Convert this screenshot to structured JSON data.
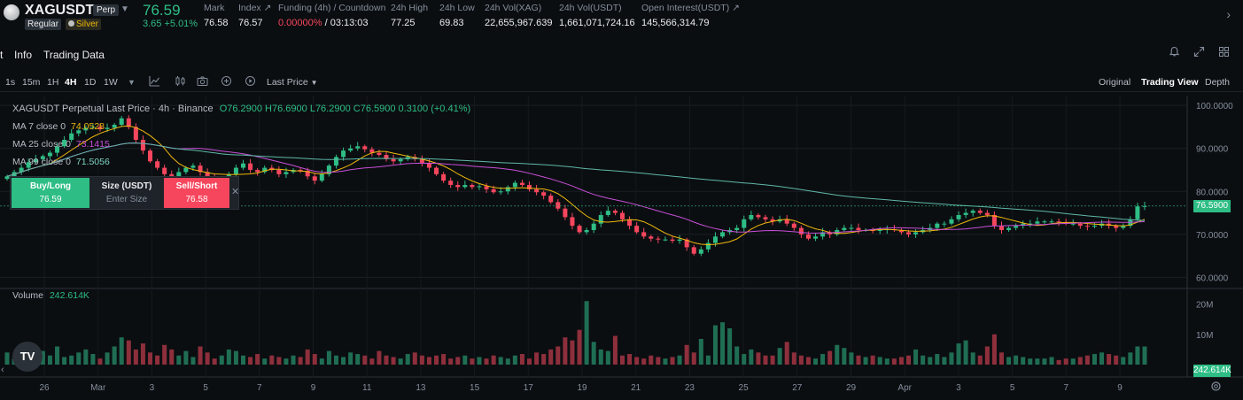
{
  "ticker": {
    "symbol": "XAGUSDT",
    "perp_tag": "Perp",
    "regular_tag": "Regular",
    "silver_tag": "Silver",
    "last_price": "76.59",
    "change": "3.65 +5.01%",
    "mark_label": "Mark",
    "mark_value": "76.58",
    "index_label": "Index",
    "index_value": "76.57",
    "funding_label": "Funding (4h) / Countdown",
    "funding_rate": "0.00000%",
    "funding_countdown": " / 03:13:03",
    "high_label": "24h High",
    "high_value": "77.25",
    "low_label": "24h Low",
    "low_value": "69.83",
    "vol_xag_label": "24h Vol(XAG)",
    "vol_xag_value": "22,655,967.639",
    "vol_usdt_label": "24h Vol(USDT)",
    "vol_usdt_value": "1,661,071,724.16",
    "oi_label": "Open Interest(USDT)",
    "oi_value": "145,566,314.79"
  },
  "tabs": {
    "chart": "t",
    "info": "Info",
    "trading_data": "Trading Data"
  },
  "toolbar": {
    "timeframes": [
      "1s",
      "15m",
      "1H",
      "4H",
      "1D",
      "1W"
    ],
    "active_timeframe": "4H",
    "price_type": "Last Price",
    "views": [
      "Original",
      "Trading View",
      "Depth"
    ],
    "active_view": "Trading View"
  },
  "legend": {
    "title": "XAGUSDT Perpetual Last Price · 4h · Binance",
    "ohlc": "O76.2900 H76.6900 L76.2900 C76.5900 0.3100 (+0.41%)",
    "ma7_label": "MA 7 close 0",
    "ma7_value": "74.0528",
    "ma25_label": "MA 25 close 0",
    "ma25_value": "73.1415",
    "ma99_label": "MA 99 close 0",
    "ma99_value": "71.5056",
    "volume_label": "Volume",
    "volume_value": "242.614K"
  },
  "order_box": {
    "buy_label": "Buy/Long",
    "buy_price": "76.59",
    "size_label": "Size (USDT)",
    "size_placeholder": "Enter Size",
    "sell_label": "Sell/Short",
    "sell_price": "76.58"
  },
  "colors": {
    "up": "#2ebd85",
    "down": "#f6465d",
    "ma7": "#f0b90b",
    "ma25": "#c84fd8",
    "ma99": "#5fb8a8"
  },
  "chart_data": {
    "type": "candlestick",
    "price_axis": [
      "100.0000",
      "90.0000",
      "80.0000",
      "70.0000",
      "60.0000"
    ],
    "price_ticks": [
      100,
      90,
      80,
      70,
      60
    ],
    "ylim": [
      57.4,
      102.3
    ],
    "current_price": 76.59,
    "current_price_label": "76.5900",
    "volume_axis": [
      "20M",
      "10M"
    ],
    "volume_ticks": [
      20000000,
      10000000
    ],
    "volume_ylim": [
      0,
      24000000
    ],
    "current_volume_label": "242.614K",
    "x_labels": [
      "26",
      "Mar",
      "3",
      "5",
      "7",
      "9",
      "11",
      "13",
      "15",
      "17",
      "19",
      "21",
      "23",
      "25",
      "27",
      "29",
      "Apr",
      "3",
      "5",
      "7",
      "9"
    ],
    "closes": [
      83.5,
      84.5,
      85.5,
      86.8,
      87.5,
      88.2,
      89.0,
      90.5,
      92.0,
      93.5,
      94.2,
      94.8,
      95.0,
      94.5,
      94.8,
      95.5,
      97.0,
      95.0,
      92.0,
      89.5,
      87.0,
      85.5,
      84.0,
      83.0,
      84.5,
      85.5,
      86.0,
      84.5,
      83.0,
      82.0,
      82.5,
      84.0,
      85.5,
      86.5,
      85.0,
      84.5,
      85.5,
      85.0,
      84.0,
      84.5,
      85.0,
      84.8,
      83.5,
      82.5,
      84.0,
      86.0,
      88.0,
      89.5,
      90.0,
      90.5,
      89.8,
      89.0,
      88.5,
      87.5,
      87.0,
      87.5,
      88.0,
      87.5,
      86.5,
      85.5,
      84.0,
      82.5,
      81.5,
      81.0,
      81.5,
      81.0,
      81.2,
      80.5,
      79.8,
      80.0,
      81.0,
      82.0,
      81.5,
      80.5,
      79.8,
      79.0,
      77.5,
      76.0,
      74.0,
      72.0,
      70.5,
      71.0,
      72.5,
      74.5,
      75.5,
      75.0,
      73.5,
      72.0,
      70.5,
      69.5,
      69.0,
      68.8,
      68.8,
      68.5,
      68.8,
      67.0,
      65.5,
      66.5,
      68.0,
      69.5,
      70.5,
      71.0,
      71.5,
      73.5,
      74.5,
      74.0,
      73.5,
      73.0,
      73.5,
      72.5,
      71.5,
      70.0,
      69.0,
      69.5,
      70.5,
      70.0,
      71.0,
      71.5,
      71.5,
      71.0,
      71.0,
      70.8,
      71.0,
      71.2,
      71.0,
      70.5,
      70.0,
      70.5,
      71.0,
      71.5,
      72.5,
      72.5,
      73.5,
      74.5,
      75.0,
      75.5,
      75.0,
      74.5,
      72.0,
      71.0,
      71.5,
      72.0,
      72.5,
      72.5,
      73.0,
      73.0,
      73.0,
      72.8,
      72.5,
      72.5,
      72.0,
      71.8,
      72.0,
      72.5,
      72.0,
      71.5,
      72.0,
      73.5,
      76.5,
      76.59
    ],
    "volumes_millions": [
      4.0,
      2.0,
      3.5,
      3.0,
      5.0,
      4.5,
      3.0,
      6.0,
      2.5,
      3.0,
      4.0,
      5.0,
      3.5,
      2.0,
      4.0,
      6.0,
      9.0,
      8.0,
      5.0,
      7.0,
      4.0,
      3.0,
      6.5,
      5.0,
      3.0,
      4.5,
      2.5,
      6.0,
      4.0,
      2.0,
      3.0,
      5.0,
      4.5,
      3.0,
      2.5,
      3.5,
      2.0,
      3.0,
      2.5,
      2.0,
      3.0,
      2.5,
      5.0,
      3.5,
      2.0,
      4.5,
      3.0,
      2.5,
      4.0,
      3.5,
      3.0,
      2.0,
      4.5,
      3.0,
      2.5,
      2.0,
      3.5,
      4.0,
      3.0,
      2.5,
      3.0,
      3.5,
      2.0,
      2.5,
      3.0,
      2.0,
      2.5,
      2.0,
      3.0,
      2.5,
      2.0,
      3.0,
      3.5,
      2.0,
      4.0,
      3.5,
      5.0,
      6.0,
      9.0,
      8.0,
      11.5,
      21.0,
      7.5,
      5.0,
      4.5,
      9.5,
      3.0,
      3.5,
      2.5,
      2.0,
      3.0,
      2.5,
      2.0,
      2.5,
      3.0,
      6.5,
      4.0,
      8.5,
      3.0,
      13.0,
      14.0,
      12.0,
      6.0,
      3.5,
      5.0,
      4.0,
      3.0,
      3.0,
      5.5,
      7.5,
      4.0,
      3.0,
      2.5,
      2.0,
      3.5,
      4.5,
      6.5,
      5.5,
      4.0,
      3.0,
      2.5,
      3.0,
      2.5,
      2.0,
      2.0,
      2.5,
      3.0,
      5.0,
      3.0,
      2.5,
      3.5,
      2.5,
      4.0,
      7.0,
      8.0,
      4.0,
      3.0,
      6.0,
      10.0,
      4.0,
      2.5,
      3.0,
      2.5,
      2.0,
      2.0,
      2.0,
      2.5,
      1.5,
      2.0,
      2.0,
      2.5,
      3.0,
      3.5,
      4.0,
      3.5,
      3.0,
      2.5,
      4.0,
      6.0,
      6.0,
      0.24
    ]
  }
}
